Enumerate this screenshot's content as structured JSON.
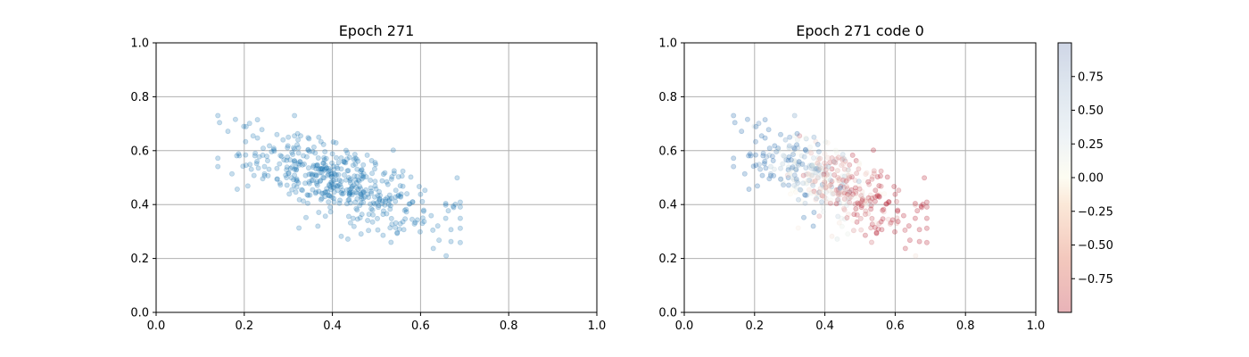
{
  "chart_data": [
    {
      "type": "scatter",
      "title": "Epoch 271",
      "xlabel": "",
      "ylabel": "",
      "xlim": [
        0.0,
        1.0
      ],
      "ylim": [
        0.0,
        1.0
      ],
      "xticks": [
        "0.0",
        "0.2",
        "0.4",
        "0.6",
        "0.8",
        "1.0"
      ],
      "yticks": [
        "0.0",
        "0.2",
        "0.4",
        "0.6",
        "0.8",
        "1.0"
      ],
      "grid": true,
      "color": "#1f77b4",
      "alpha": 0.25,
      "points_note": "approx. 500 points, values estimated from plot",
      "points": []
    },
    {
      "type": "scatter",
      "title": "Epoch 271 code 0",
      "xlabel": "",
      "ylabel": "",
      "xlim": [
        0.0,
        1.0
      ],
      "ylim": [
        0.0,
        1.0
      ],
      "xticks": [
        "0.0",
        "0.2",
        "0.4",
        "0.6",
        "0.8",
        "1.0"
      ],
      "yticks": [
        "0.0",
        "0.2",
        "0.4",
        "0.6",
        "0.8",
        "1.0"
      ],
      "grid": true,
      "colormap": "RdBu",
      "alpha": 0.25,
      "colorbar": {
        "range": [
          -1.0,
          1.0
        ],
        "ticks": [
          "0.75",
          "0.50",
          "0.25",
          "0.00",
          "−0.25",
          "−0.50",
          "−0.75"
        ],
        "tick_values": [
          0.75,
          0.5,
          0.25,
          0.0,
          -0.25,
          -0.5,
          -0.75
        ]
      },
      "points": []
    }
  ],
  "colors": {
    "grid": "#b0b0b0",
    "axis": "#000000",
    "blue": "#1f77b4",
    "cmap_low": "#b2182b",
    "cmap_mid": "#fdfcf0",
    "cmap_high": "#2166ac"
  }
}
